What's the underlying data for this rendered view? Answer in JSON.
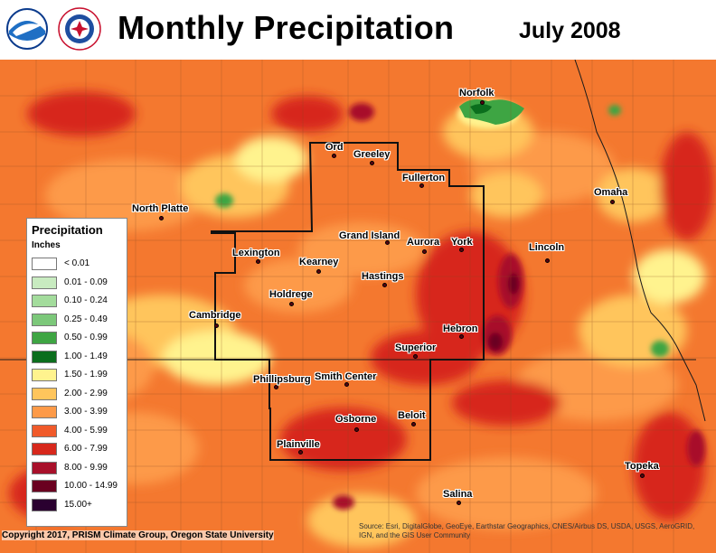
{
  "header": {
    "title": "Monthly Precipitation",
    "period": "July 2008",
    "logos": [
      {
        "name": "noaa-logo",
        "text": "NOAA"
      },
      {
        "name": "nws-logo",
        "text": "NATIONAL WEATHER SERVICE"
      }
    ]
  },
  "legend": {
    "title": "Precipitation",
    "units": "Inches",
    "items": [
      {
        "label": "< 0.01",
        "color": "#ffffff"
      },
      {
        "label": "0.01 - 0.09",
        "color": "#c8ebc0"
      },
      {
        "label": "0.10 - 0.24",
        "color": "#a3dc9c"
      },
      {
        "label": "0.25 - 0.49",
        "color": "#7cc87a"
      },
      {
        "label": "0.50 - 0.99",
        "color": "#3ea543"
      },
      {
        "label": "1.00 - 1.49",
        "color": "#0b6e1d"
      },
      {
        "label": "1.50 - 1.99",
        "color": "#fff38e"
      },
      {
        "label": "2.00 - 2.99",
        "color": "#ffc55c"
      },
      {
        "label": "3.00 - 3.99",
        "color": "#fd9a48"
      },
      {
        "label": "4.00 - 5.99",
        "color": "#f05a2a"
      },
      {
        "label": "6.00 - 7.99",
        "color": "#d7281c"
      },
      {
        "label": "8.00 - 9.99",
        "color": "#a8102a"
      },
      {
        "label": "10.00 - 14.99",
        "color": "#6a0020"
      },
      {
        "label": "15.00+",
        "color": "#2a0030"
      }
    ]
  },
  "cities": [
    {
      "name": "Norfolk"
    },
    {
      "name": "Ord"
    },
    {
      "name": "Greeley"
    },
    {
      "name": "Fullerton"
    },
    {
      "name": "North Platte"
    },
    {
      "name": "Omaha"
    },
    {
      "name": "Grand Island"
    },
    {
      "name": "Aurora"
    },
    {
      "name": "York"
    },
    {
      "name": "Lexington"
    },
    {
      "name": "Lincoln"
    },
    {
      "name": "Kearney"
    },
    {
      "name": "Hastings"
    },
    {
      "name": "Holdrege"
    },
    {
      "name": "Cambridge"
    },
    {
      "name": "Hebron"
    },
    {
      "name": "Superior"
    },
    {
      "name": "Phillipsburg"
    },
    {
      "name": "Smith Center"
    },
    {
      "name": "Beloit"
    },
    {
      "name": "Osborne"
    },
    {
      "name": "Plainville"
    },
    {
      "name": "Topeka"
    },
    {
      "name": "Salina"
    }
  ],
  "footer": {
    "copyright": "Copyright 2017, PRISM Climate Group, Oregon State University",
    "credits": "Source: Esri, DigitalGlobe, GeoEye, Earthstar Geographics, CNES/Airbus DS, USDA, USGS, AeroGRID, IGN, and the GIS User Community"
  }
}
